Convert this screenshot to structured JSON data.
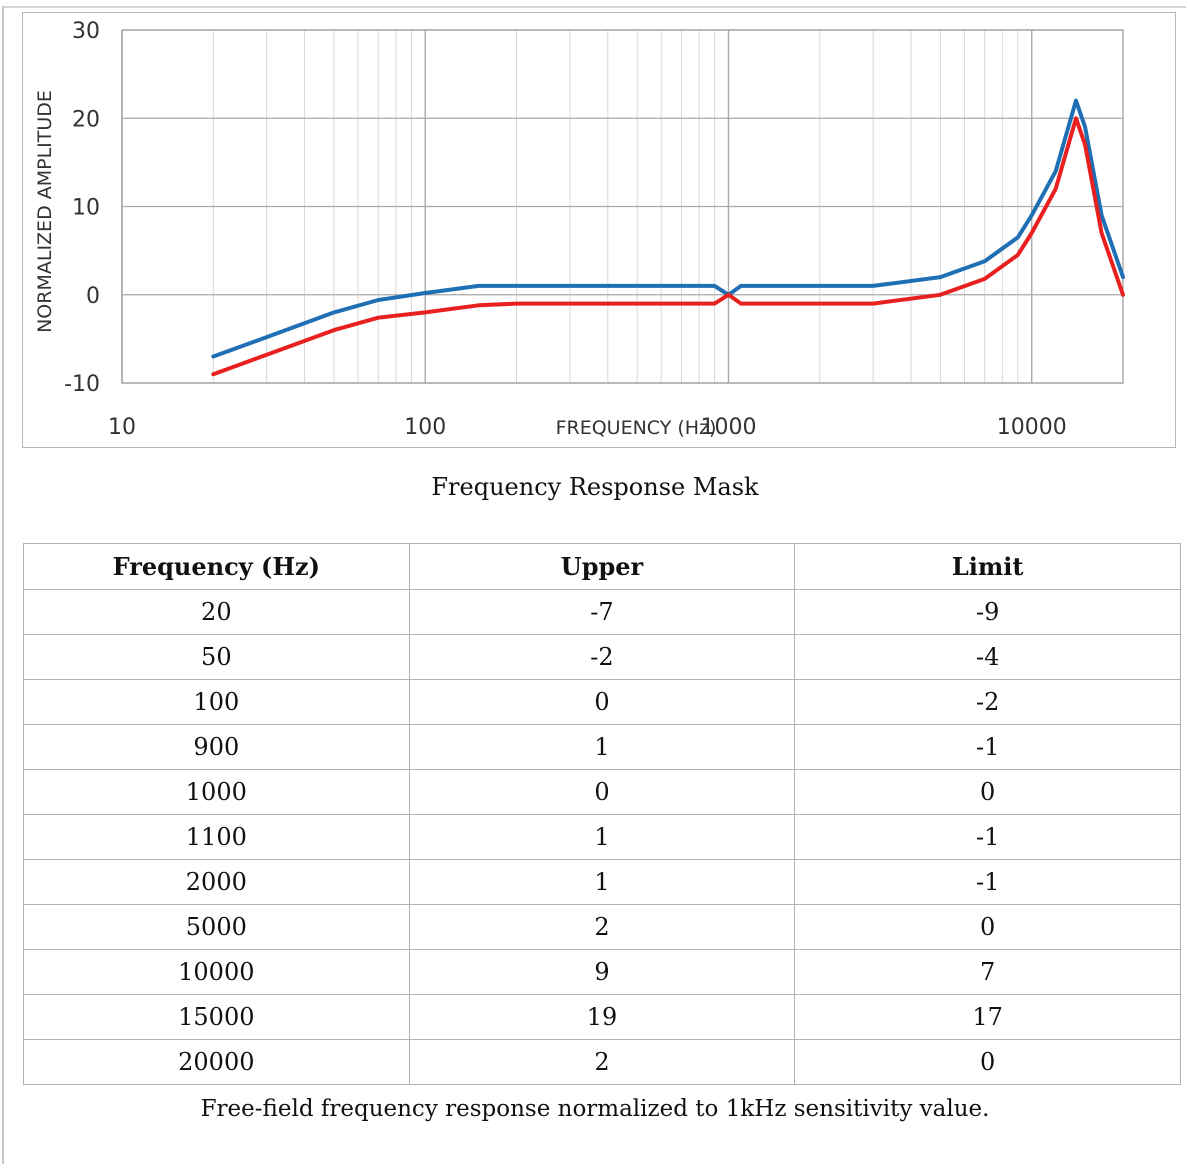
{
  "chart_data": {
    "type": "line",
    "xlabel": "FREQUENCY (Hz)",
    "ylabel": "NORMALIZED AMPLITUDE",
    "xscale": "log",
    "xlim": [
      10,
      20000
    ],
    "ylim": [
      -10,
      30
    ],
    "x_tick_labels": [
      "10",
      "100",
      "1000",
      "10000"
    ],
    "y_tick_labels": [
      "-10",
      "0",
      "10",
      "20",
      "30"
    ],
    "grid": true,
    "legend": "none",
    "series": [
      {
        "color": "#1f6fb5",
        "points": [
          [
            20,
            -7
          ],
          [
            30,
            -4.8
          ],
          [
            50,
            -2
          ],
          [
            70,
            -0.6
          ],
          [
            100,
            0.2
          ],
          [
            150,
            1
          ],
          [
            200,
            1
          ],
          [
            500,
            1
          ],
          [
            900,
            1
          ],
          [
            1000,
            0
          ],
          [
            1100,
            1
          ],
          [
            2000,
            1
          ],
          [
            3000,
            1
          ],
          [
            5000,
            2
          ],
          [
            7000,
            3.8
          ],
          [
            9000,
            6.5
          ],
          [
            10000,
            9
          ],
          [
            12000,
            14
          ],
          [
            14000,
            22
          ],
          [
            15000,
            19
          ],
          [
            17000,
            9
          ],
          [
            20000,
            2
          ]
        ]
      },
      {
        "color": "#e8201f",
        "points": [
          [
            20,
            -9
          ],
          [
            30,
            -6.8
          ],
          [
            50,
            -4
          ],
          [
            70,
            -2.6
          ],
          [
            100,
            -2
          ],
          [
            150,
            -1.2
          ],
          [
            200,
            -1
          ],
          [
            500,
            -1
          ],
          [
            900,
            -1
          ],
          [
            1000,
            0
          ],
          [
            1100,
            -1
          ],
          [
            2000,
            -1
          ],
          [
            3000,
            -1
          ],
          [
            5000,
            0
          ],
          [
            7000,
            1.8
          ],
          [
            9000,
            4.5
          ],
          [
            10000,
            7
          ],
          [
            12000,
            12
          ],
          [
            14000,
            20
          ],
          [
            15000,
            17
          ],
          [
            17000,
            7
          ],
          [
            20000,
            0
          ]
        ]
      }
    ]
  },
  "captions": {
    "chart": "Frequency Response Mask",
    "footnote": "Free-field frequency response normalized to 1kHz sensitivity value."
  },
  "table": {
    "headers": [
      "Frequency (Hz)",
      "Upper",
      "Limit"
    ],
    "rows": [
      [
        "20",
        "-7",
        "-9"
      ],
      [
        "50",
        "-2",
        "-4"
      ],
      [
        "100",
        "0",
        "-2"
      ],
      [
        "900",
        "1",
        "-1"
      ],
      [
        "1000",
        "0",
        "0"
      ],
      [
        "1100",
        "1",
        "-1"
      ],
      [
        "2000",
        "1",
        "-1"
      ],
      [
        "5000",
        "2",
        "0"
      ],
      [
        "10000",
        "9",
        "7"
      ],
      [
        "15000",
        "19",
        "17"
      ],
      [
        "20000",
        "2",
        "0"
      ]
    ]
  }
}
